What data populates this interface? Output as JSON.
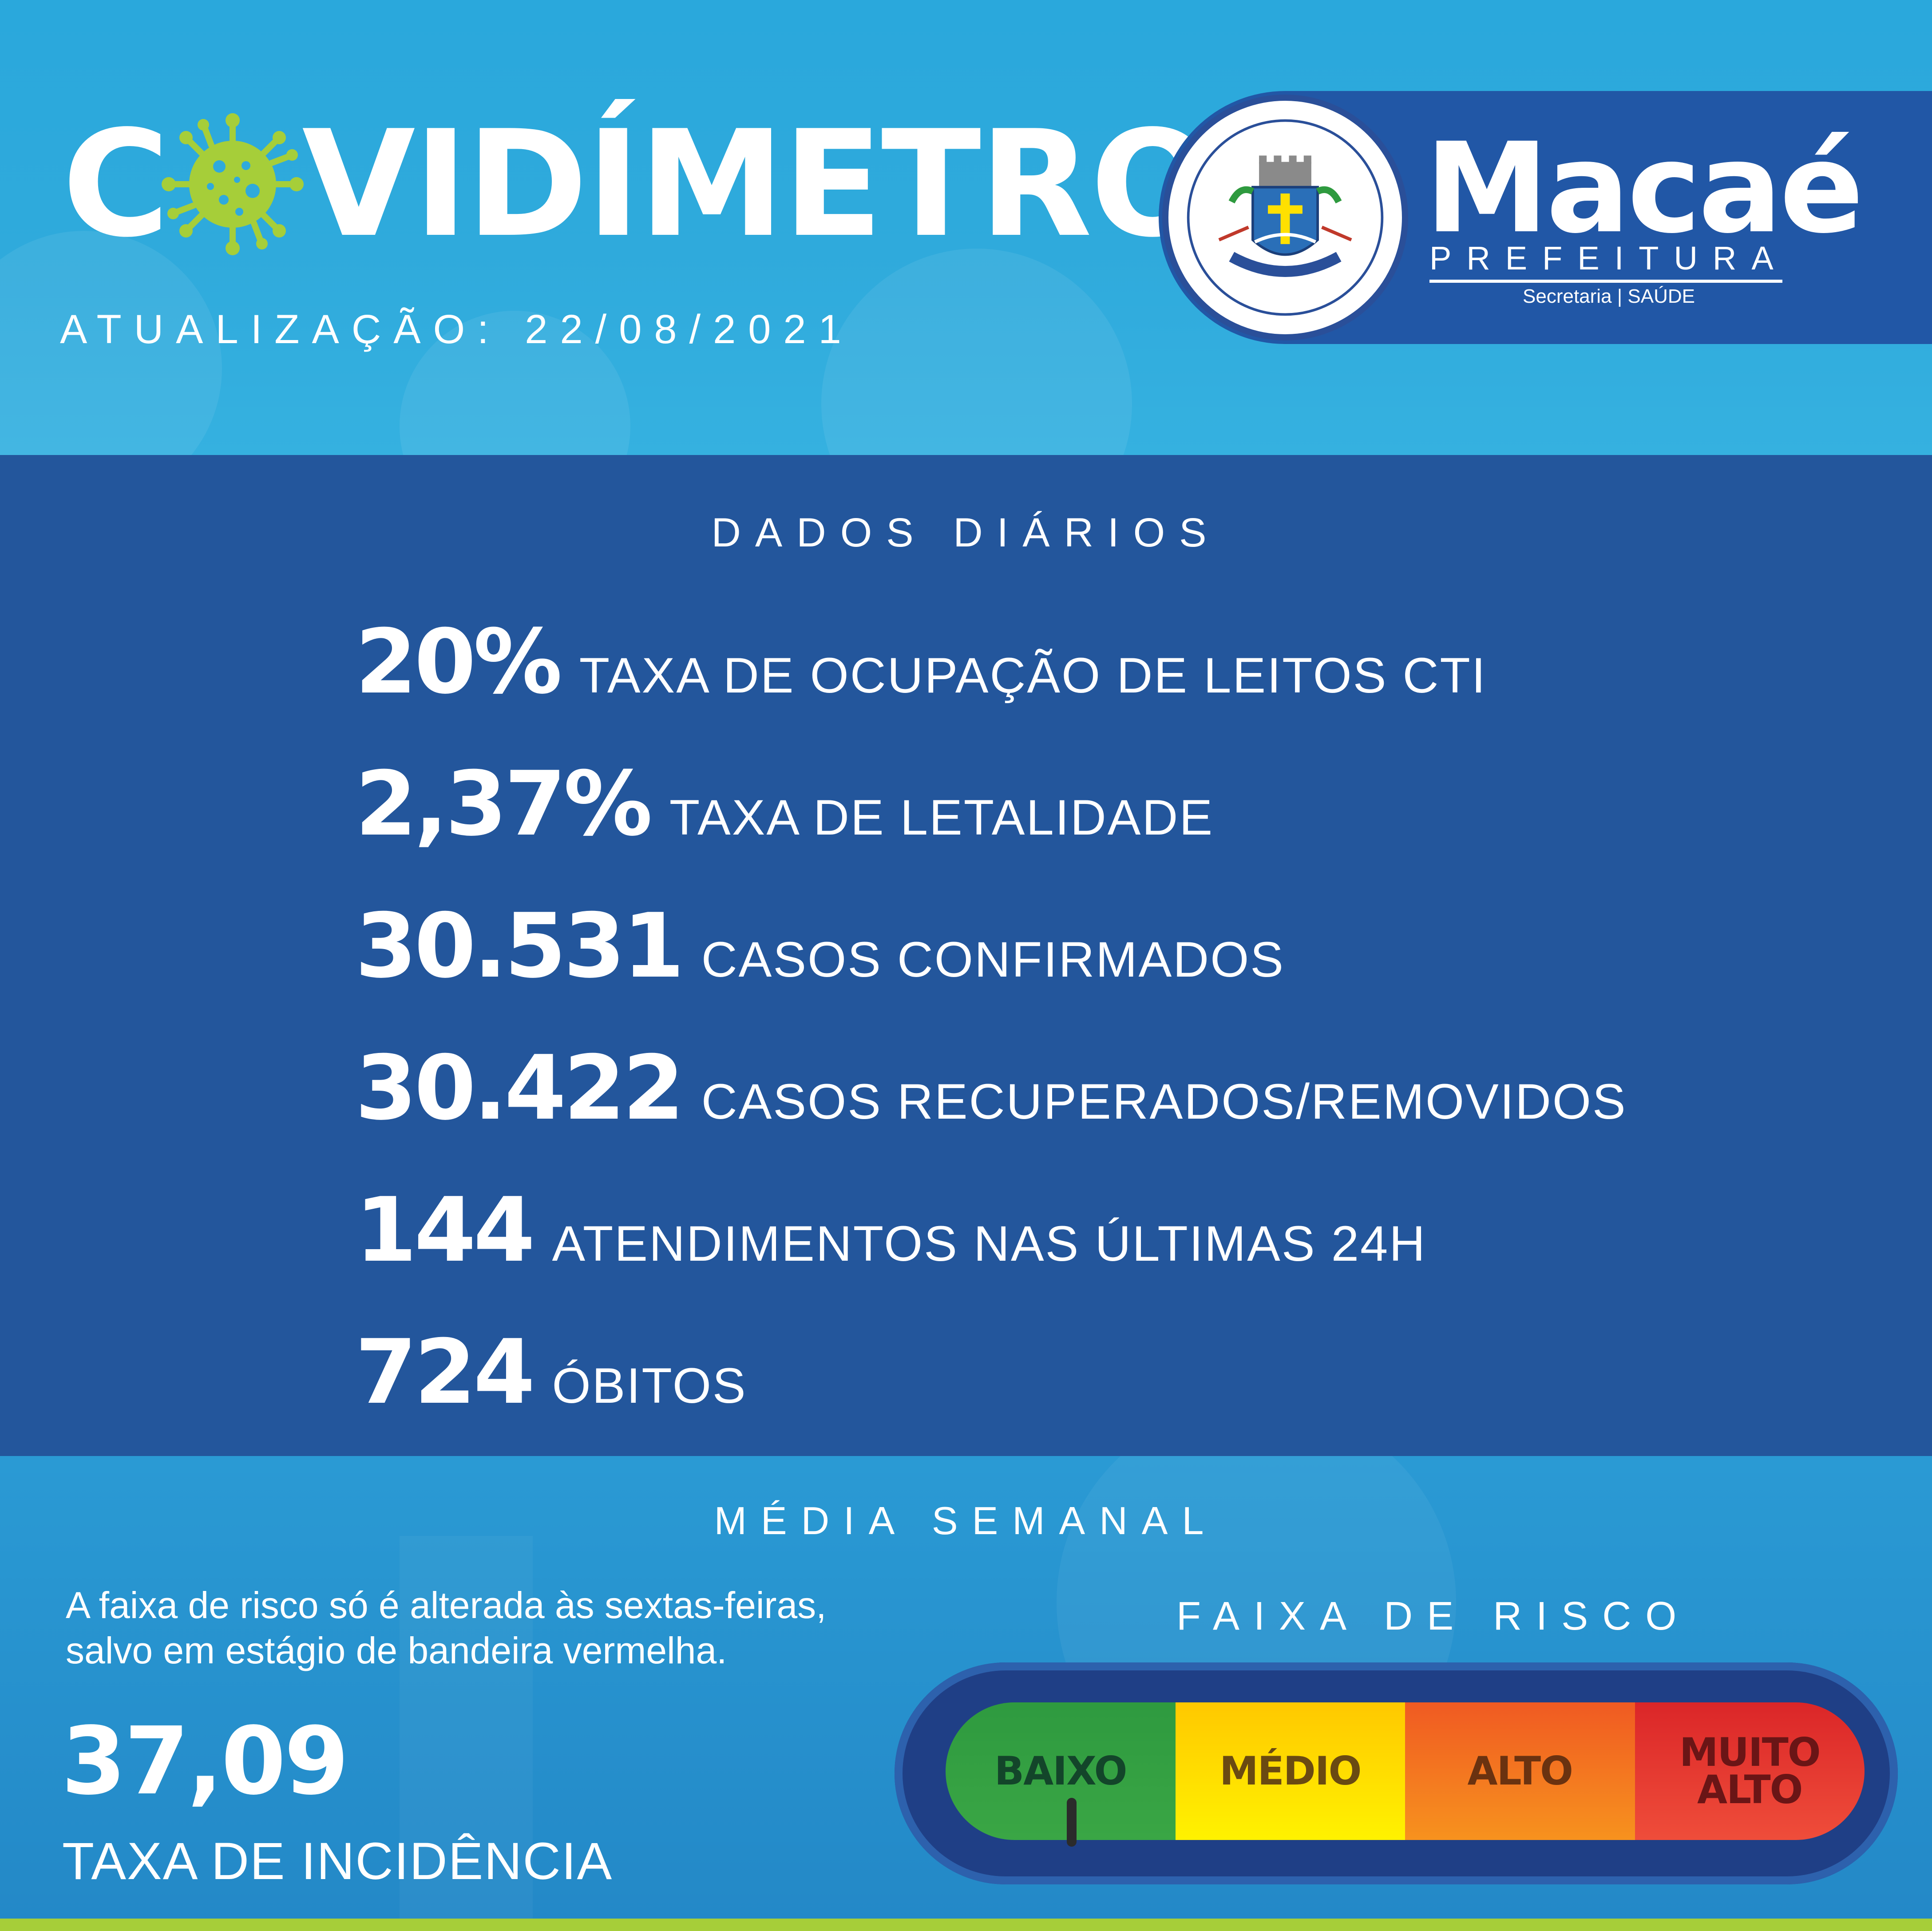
{
  "header": {
    "title_prefix": "C",
    "title_suffix": "VIDÍMETRO",
    "update_label": "ATUALIZAÇÃO: 22/08/2021"
  },
  "logo": {
    "brand_name": "Macaé",
    "brand_sub": "PREFEITURA",
    "brand_dept": "Secretaria | SAÚDE"
  },
  "daily": {
    "title": "DADOS DIÁRIOS",
    "stats": [
      {
        "value": "20%",
        "label": "TAXA DE OCUPAÇÃO DE LEITOS CTI"
      },
      {
        "value": "2,37%",
        "label": "TAXA DE LETALIDADE"
      },
      {
        "value": "30.531",
        "label": "CASOS CONFIRMADOS"
      },
      {
        "value": "30.422",
        "label": "CASOS RECUPERADOS/REMOVIDOS"
      },
      {
        "value": "144",
        "label": "ATENDIMENTOS NAS ÚLTIMAS 24H"
      },
      {
        "value": "724",
        "label": "ÓBITOS"
      }
    ]
  },
  "weekly": {
    "title": "MÉDIA SEMANAL",
    "note_line1": "A faixa de risco só é alterada às sextas-feiras,",
    "note_line2": "salvo em estágio de bandeira vermelha.",
    "incidence_value": "37,09",
    "incidence_label": "TAXA DE INCIDÊNCIA"
  },
  "risk": {
    "title": "FAIXA DE RISCO",
    "low": "BAIXO",
    "medium": "MÉDIO",
    "high": "ALTO",
    "very_high_line1": "MUITO",
    "very_high_line2": "ALTO",
    "current_level": "BAIXO"
  },
  "colors": {
    "header_bg": "#2aa8dc",
    "panel_bg": "#23569c",
    "logo_panel": "#2157a6",
    "virus_green": "#a6ce39",
    "risk_low": "#2e9a3f",
    "risk_medium": "#ffd400",
    "risk_high": "#f47a20",
    "risk_very_high": "#e23a2f"
  }
}
